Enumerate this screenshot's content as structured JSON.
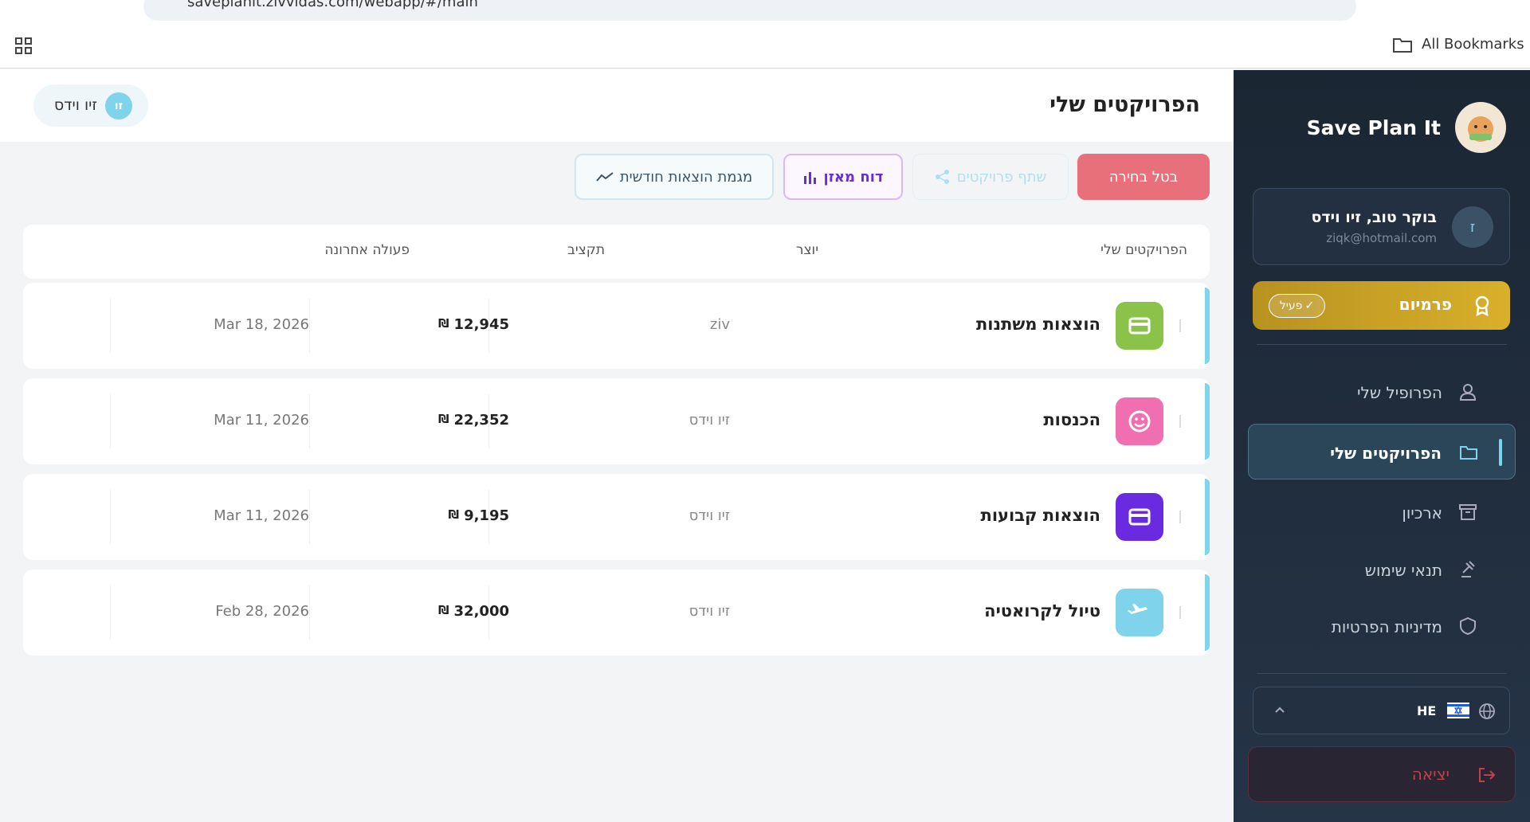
{
  "browser": {
    "url": "saveplanit.zivvidas.com/webapp/#/main",
    "bookmarks": "All Bookmarks"
  },
  "header": {
    "title": "הפרויקטים שלי",
    "user_initials": "זו",
    "user_name": "זיו וידס"
  },
  "toolbar": {
    "cancel": "בטל בחירה",
    "share": "שתף פרויקטים",
    "balance": "דוח מאזן",
    "trend": "מגמת הוצאות חודשית"
  },
  "table": {
    "columns": [
      "הפרויקטים שלי",
      "יוצר",
      "תקציב",
      "פעולה אחרונה"
    ],
    "currency": "₪",
    "rows": [
      {
        "name": "הוצאות משתנות",
        "creator": "ziv",
        "budget": "12,945",
        "date": "Mar 18, 2026",
        "color": "#8bc34a"
      },
      {
        "name": "הכנסות",
        "creator": "זיו וידס",
        "budget": "22,352",
        "date": "Mar 11, 2026",
        "color": "#f06fb0"
      },
      {
        "name": "הוצאות קבועות",
        "creator": "זיו וידס",
        "budget": "9,195",
        "date": "Mar 11, 2026",
        "color": "#6a2be0"
      },
      {
        "name": "טיול לקרואטיה",
        "creator": "זיו וידס",
        "budget": "32,000",
        "date": "Feb 28, 2026",
        "color": "#7fd3ea"
      }
    ]
  },
  "sidebar": {
    "brand": "Save Plan It",
    "greeting": "בוקר טוב, זיו וידס",
    "email": "ziqk@hotmail.com",
    "avatar": "ז",
    "premium": "פרמיום",
    "premium_status": "פעיל",
    "nav": [
      "הפרופיל שלי",
      "הפרויקטים שלי",
      "ארכיון",
      "תנאי שימוש",
      "מדיניות הפרטיות"
    ],
    "active": 1,
    "language": "HE",
    "logout": "יציאה"
  }
}
